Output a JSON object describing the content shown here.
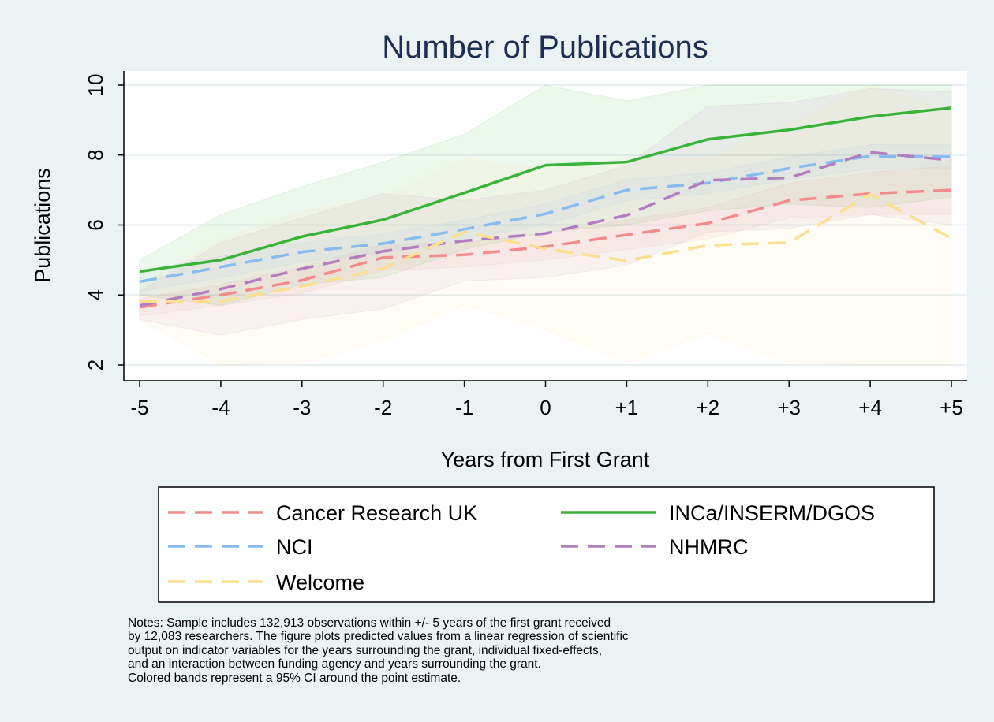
{
  "chart_data": {
    "type": "line",
    "title": "Number of Publications",
    "xlabel": "Years from First Grant",
    "ylabel": "Publications",
    "x": [
      "-5",
      "-4",
      "-3",
      "-2",
      "-1",
      "0",
      "+1",
      "+2",
      "+3",
      "+4",
      "+5"
    ],
    "ylim": [
      2,
      10
    ],
    "yticks": [
      2,
      4,
      6,
      8,
      10
    ],
    "grid": true,
    "legend_position": "bottom",
    "series": [
      {
        "name": "Cancer Research UK",
        "color": "#f28b8b",
        "dash": "dashed",
        "values": [
          3.65,
          4.0,
          4.42,
          5.07,
          5.15,
          5.38,
          5.72,
          6.05,
          6.7,
          6.9,
          7.0
        ],
        "ci_lower": [
          3.4,
          3.7,
          4.05,
          4.7,
          4.8,
          5.0,
          5.3,
          5.6,
          6.2,
          6.3,
          6.3
        ],
        "ci_upper": [
          3.9,
          4.3,
          4.8,
          5.45,
          5.5,
          5.75,
          6.15,
          6.5,
          7.2,
          7.5,
          7.7
        ]
      },
      {
        "name": "INCa/INSERM/DGOS",
        "color": "#3ab33a",
        "dash": "solid",
        "values": [
          4.67,
          5.0,
          5.67,
          6.15,
          6.92,
          7.71,
          7.8,
          8.45,
          8.72,
          9.1,
          9.35
        ],
        "ci_lower": [
          4.0,
          3.7,
          4.3,
          4.5,
          5.3,
          5.8,
          6.0,
          6.4,
          6.6,
          6.5,
          6.8
        ],
        "ci_upper": [
          5.0,
          6.3,
          7.1,
          7.8,
          8.6,
          10.0,
          9.55,
          10.0,
          10.0,
          10.0,
          10.0
        ]
      },
      {
        "name": "NCI",
        "color": "#88bbf0",
        "dash": "dashed",
        "values": [
          4.38,
          4.8,
          5.23,
          5.47,
          5.88,
          6.32,
          7.0,
          7.2,
          7.62,
          7.97,
          7.95
        ],
        "ci_lower": [
          4.1,
          4.5,
          4.95,
          5.2,
          5.6,
          6.0,
          6.7,
          6.9,
          7.3,
          7.6,
          7.6
        ],
        "ci_upper": [
          4.7,
          5.1,
          5.5,
          5.75,
          6.15,
          6.6,
          7.3,
          7.5,
          7.95,
          8.3,
          8.3
        ]
      },
      {
        "name": "NHMRC",
        "color": "#b27ec0",
        "dash": "dashed",
        "values": [
          3.7,
          4.17,
          4.75,
          5.25,
          5.55,
          5.76,
          6.28,
          7.28,
          7.35,
          8.08,
          7.85
        ],
        "ci_lower": [
          3.3,
          2.85,
          3.3,
          3.6,
          4.4,
          4.5,
          4.85,
          5.8,
          5.9,
          6.3,
          6.0
        ],
        "ci_upper": [
          4.1,
          5.5,
          6.2,
          6.9,
          6.7,
          7.0,
          7.7,
          9.4,
          9.5,
          9.9,
          9.8
        ]
      },
      {
        "name": "Welcome",
        "color": "#fbe08f",
        "dash": "dashed",
        "values": [
          3.82,
          3.82,
          4.25,
          4.76,
          5.8,
          5.32,
          4.98,
          5.42,
          5.5,
          6.88,
          5.62
        ],
        "ci_lower": [
          3.3,
          2.0,
          2.05,
          2.7,
          3.7,
          3.0,
          2.05,
          2.9,
          2.05,
          2.0,
          2.0
        ],
        "ci_upper": [
          4.3,
          5.6,
          6.4,
          6.8,
          7.9,
          7.6,
          7.9,
          7.9,
          8.9,
          10.0,
          9.2
        ]
      }
    ],
    "legend": [
      [
        "Cancer Research UK",
        "INCa/INSERM/DGOS"
      ],
      [
        "NCI",
        "NHMRC"
      ],
      [
        "Welcome",
        ""
      ]
    ]
  },
  "notes": [
    "Notes: Sample includes 132,913 observations within +/- 5 years of the first grant received",
    "by 12,083 researchers. The figure plots predicted values from a linear regression of scientific",
    "output on indicator variables for the years surrounding the grant, individual fixed-effects,",
    "and an interaction between funding agency and years surrounding the grant.",
    "Colored bands represent a 95% CI around the point estimate."
  ]
}
